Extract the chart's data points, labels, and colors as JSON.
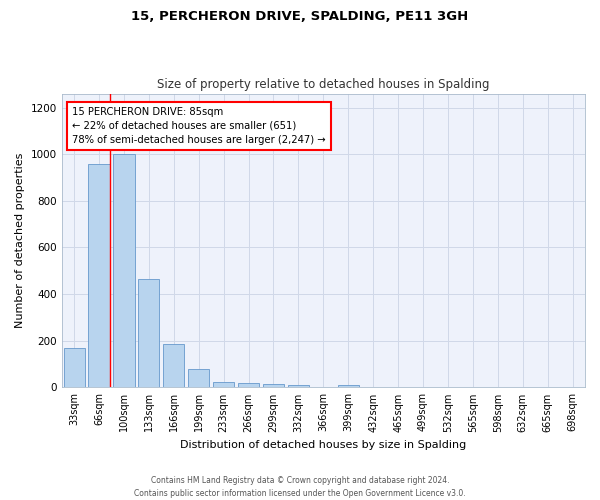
{
  "title": "15, PERCHERON DRIVE, SPALDING, PE11 3GH",
  "subtitle": "Size of property relative to detached houses in Spalding",
  "xlabel": "Distribution of detached houses by size in Spalding",
  "ylabel": "Number of detached properties",
  "footer": "Contains HM Land Registry data © Crown copyright and database right 2024.\nContains public sector information licensed under the Open Government Licence v3.0.",
  "categories": [
    "33sqm",
    "66sqm",
    "100sqm",
    "133sqm",
    "166sqm",
    "199sqm",
    "233sqm",
    "266sqm",
    "299sqm",
    "332sqm",
    "366sqm",
    "399sqm",
    "432sqm",
    "465sqm",
    "499sqm",
    "532sqm",
    "565sqm",
    "598sqm",
    "632sqm",
    "665sqm",
    "698sqm"
  ],
  "values": [
    170,
    960,
    1000,
    465,
    185,
    80,
    25,
    20,
    15,
    10,
    0,
    10,
    0,
    0,
    0,
    0,
    0,
    0,
    0,
    0,
    0
  ],
  "bar_color": "#b8d4ee",
  "bar_edge_color": "#6699cc",
  "red_line_x": 1.45,
  "annotation_text": "15 PERCHERON DRIVE: 85sqm\n← 22% of detached houses are smaller (651)\n78% of semi-detached houses are larger (2,247) →",
  "ylim": [
    0,
    1260
  ],
  "yticks": [
    0,
    200,
    400,
    600,
    800,
    1000,
    1200
  ],
  "background_color": "#eef2fb",
  "grid_color": "#d0d8e8",
  "title_fontsize": 9.5,
  "subtitle_fontsize": 8.5,
  "axis_label_fontsize": 8,
  "tick_fontsize": 7,
  "footer_fontsize": 5.5
}
